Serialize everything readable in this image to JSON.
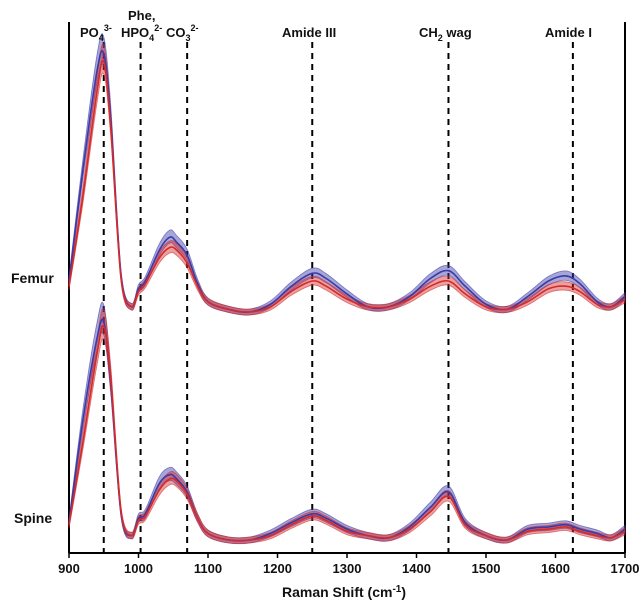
{
  "chart_data": {
    "type": "line",
    "xlabel": "Raman Shift (cm-1)",
    "xlim": [
      900,
      1700
    ],
    "x_ticks": [
      900,
      1000,
      1100,
      1200,
      1300,
      1400,
      1500,
      1600,
      1700
    ],
    "legend": "none",
    "grid": false,
    "peak_markers": [
      {
        "x": 950,
        "label": "PO4 3-"
      },
      {
        "x": 1003,
        "label": "Phe, HPO4 2-"
      },
      {
        "x": 1070,
        "label": "CO3 2-"
      },
      {
        "x": 1250,
        "label": "Amide III"
      },
      {
        "x": 1446,
        "label": "CH2 wag"
      },
      {
        "x": 1625,
        "label": "Amide I"
      }
    ],
    "panels": [
      {
        "name": "Femur",
        "x": [
          900,
          920,
          940,
          950,
          960,
          975,
          990,
          1000,
          1010,
          1030,
          1045,
          1055,
          1070,
          1085,
          1100,
          1130,
          1160,
          1190,
          1220,
          1250,
          1270,
          1300,
          1330,
          1360,
          1390,
          1420,
          1446,
          1470,
          1500,
          1530,
          1560,
          1590,
          1615,
          1635,
          1660,
          1680,
          1700
        ],
        "series": [
          {
            "color": "#3a3aa8",
            "values": [
              0.12,
              0.55,
              0.93,
              1.0,
              0.75,
              0.14,
              0.02,
              0.09,
              0.12,
              0.24,
              0.29,
              0.27,
              0.22,
              0.11,
              0.04,
              0.01,
              0.0,
              0.03,
              0.1,
              0.15,
              0.13,
              0.07,
              0.02,
              0.02,
              0.06,
              0.13,
              0.16,
              0.1,
              0.03,
              0.01,
              0.06,
              0.12,
              0.14,
              0.11,
              0.04,
              0.02,
              0.06
            ]
          },
          {
            "color": "#d42a2a",
            "values": [
              0.1,
              0.45,
              0.85,
              0.97,
              0.72,
              0.13,
              0.02,
              0.08,
              0.11,
              0.21,
              0.25,
              0.24,
              0.19,
              0.1,
              0.04,
              0.01,
              0.0,
              0.02,
              0.08,
              0.12,
              0.1,
              0.05,
              0.02,
              0.02,
              0.05,
              0.1,
              0.12,
              0.07,
              0.02,
              0.01,
              0.04,
              0.09,
              0.1,
              0.08,
              0.03,
              0.02,
              0.05
            ]
          }
        ]
      },
      {
        "name": "Spine",
        "x": [
          900,
          920,
          940,
          950,
          960,
          975,
          990,
          1000,
          1010,
          1030,
          1045,
          1055,
          1070,
          1085,
          1100,
          1130,
          1160,
          1190,
          1220,
          1250,
          1270,
          1300,
          1330,
          1360,
          1390,
          1420,
          1446,
          1470,
          1500,
          1530,
          1560,
          1590,
          1615,
          1635,
          1660,
          1680,
          1700
        ],
        "series": [
          {
            "color": "#3a3aa8",
            "values": [
              0.08,
              0.55,
              0.92,
              1.0,
              0.72,
              0.12,
              0.02,
              0.1,
              0.12,
              0.26,
              0.3,
              0.28,
              0.22,
              0.1,
              0.03,
              0.0,
              0.0,
              0.03,
              0.08,
              0.12,
              0.1,
              0.05,
              0.02,
              0.01,
              0.06,
              0.15,
              0.22,
              0.08,
              0.02,
              0.0,
              0.05,
              0.06,
              0.07,
              0.05,
              0.03,
              0.01,
              0.05
            ]
          },
          {
            "color": "#d42a2a",
            "values": [
              0.07,
              0.45,
              0.85,
              0.98,
              0.74,
              0.13,
              0.02,
              0.09,
              0.11,
              0.23,
              0.28,
              0.27,
              0.21,
              0.1,
              0.03,
              0.0,
              0.0,
              0.02,
              0.07,
              0.11,
              0.09,
              0.04,
              0.02,
              0.01,
              0.05,
              0.13,
              0.2,
              0.07,
              0.02,
              0.0,
              0.04,
              0.05,
              0.06,
              0.04,
              0.02,
              0.01,
              0.04
            ]
          }
        ]
      }
    ]
  }
}
